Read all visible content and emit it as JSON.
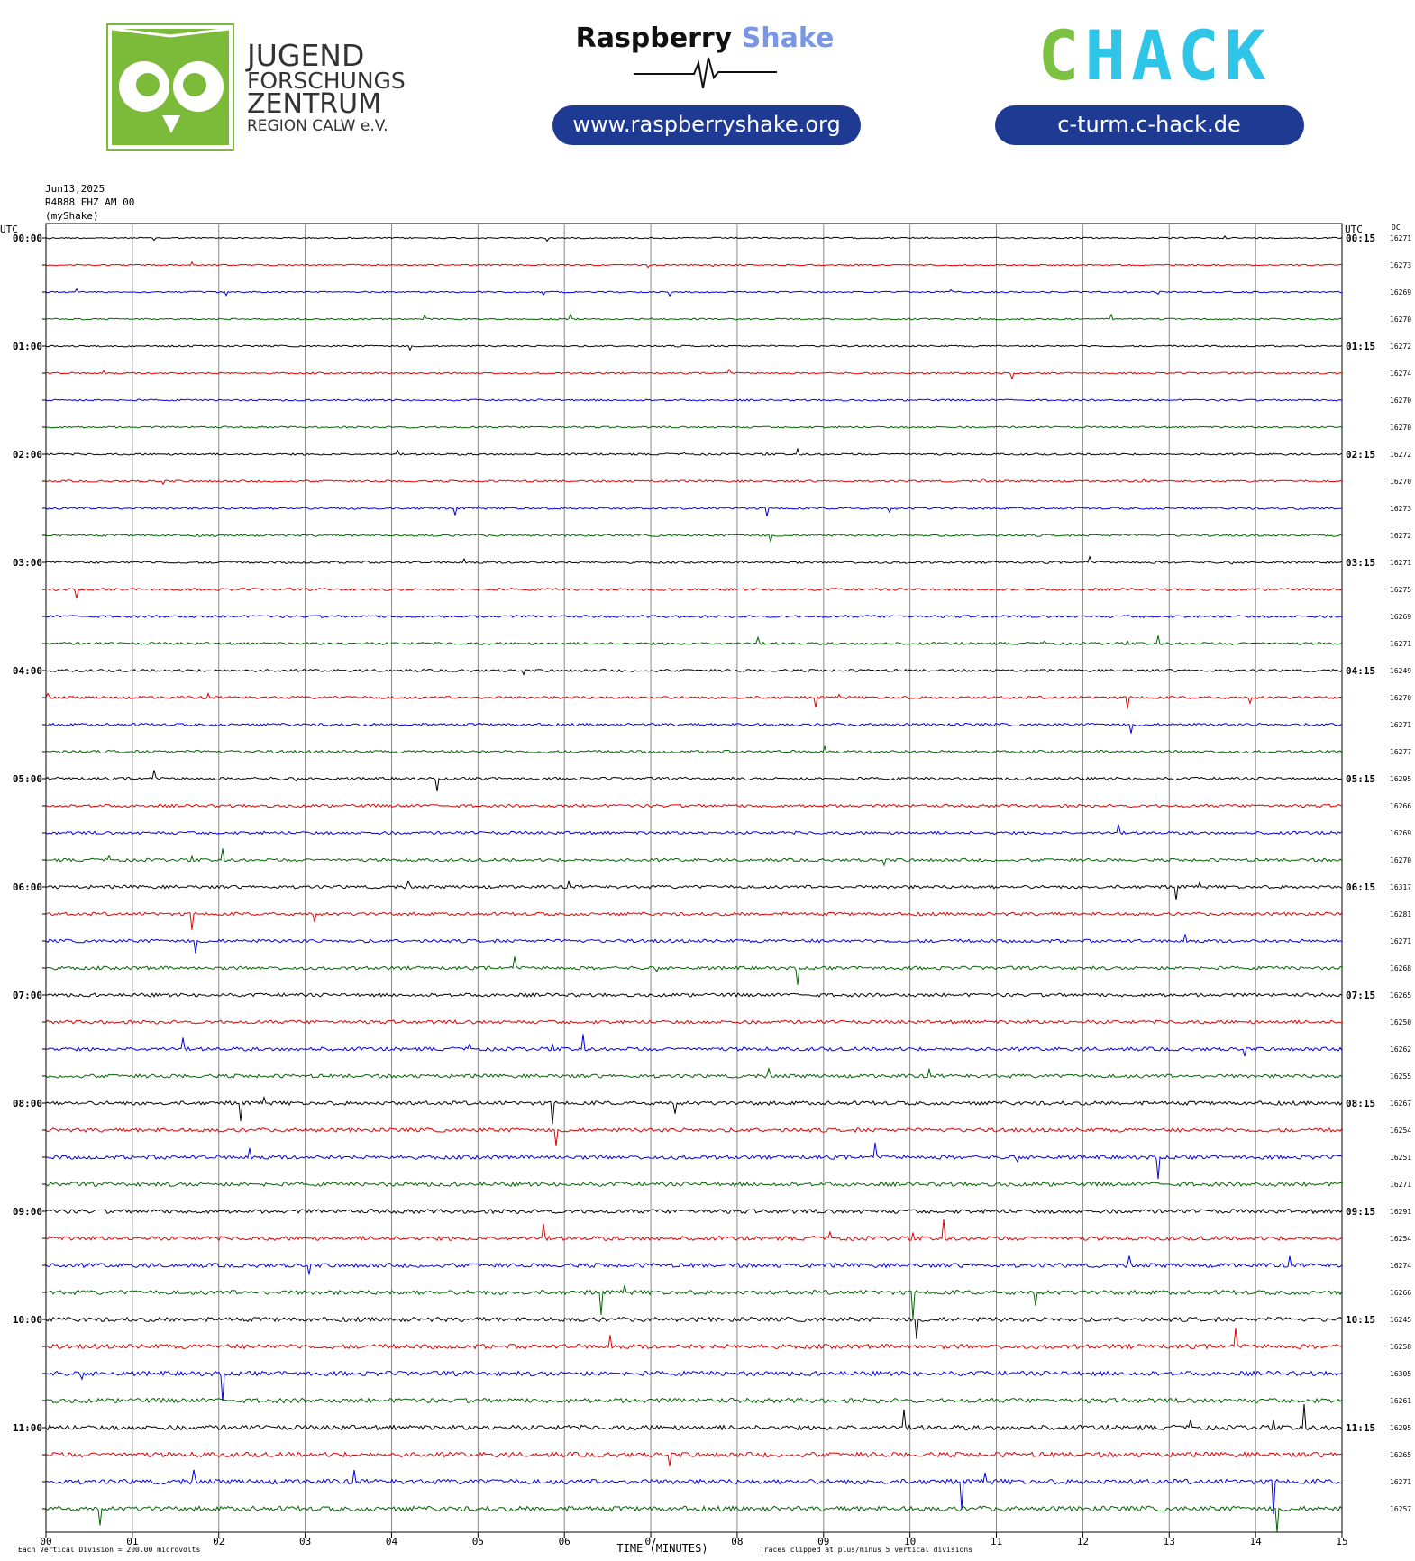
{
  "header": {
    "jfz_lines": [
      "JUGEND",
      "FORSCHUNGS",
      "ZENTRUM",
      "REGION CALW e.V."
    ],
    "rs_name_1": "Raspberry",
    "rs_name_2": "Shake",
    "rs_url": "www.raspberryshake.org",
    "chack_c": "C",
    "chack_rest": "HACK",
    "chack_url": "c-turm.c-hack.de"
  },
  "plot": {
    "date": "Jun13,2025",
    "station": "R4B88 EHZ AM 00",
    "source": "(myShake)",
    "left_header": "UTC",
    "right_header": "UTC",
    "dc_header": "DC",
    "left_times": [
      "00:00",
      "01:00",
      "02:00",
      "03:00",
      "04:00",
      "05:00",
      "06:00",
      "07:00",
      "08:00",
      "09:00",
      "10:00",
      "11:00"
    ],
    "right_times": [
      "00:15",
      "01:15",
      "02:15",
      "03:15",
      "04:15",
      "05:15",
      "06:15",
      "07:15",
      "08:15",
      "09:15",
      "10:15",
      "11:15"
    ],
    "trace_colors": [
      "#000000",
      "#e00000",
      "#0000e0",
      "#006400"
    ],
    "dc_values": [
      16271,
      16273,
      16269,
      16270,
      16272,
      16274,
      16270,
      16270,
      16272,
      16270,
      16273,
      16272,
      16271,
      16275,
      16269,
      16271,
      16249,
      16270,
      16271,
      16277,
      16295,
      16266,
      16269,
      16270,
      16317,
      16281,
      16271,
      16268,
      16265,
      16250,
      16262,
      16255,
      16267,
      16254,
      16251,
      16271,
      16291,
      16254,
      16274,
      16266,
      16245,
      16258,
      16305,
      16261,
      16295,
      16265,
      16271,
      16257
    ],
    "x_ticks": [
      "00",
      "01",
      "02",
      "03",
      "04",
      "05",
      "06",
      "07",
      "08",
      "09",
      "10",
      "11",
      "12",
      "13",
      "14",
      "15"
    ],
    "x_label": "TIME (MINUTES)",
    "scale_note": "Each Vertical Division = 200.00 microvolts",
    "clip_note": "Traces clipped at plus/minus 5 vertical divisions"
  }
}
